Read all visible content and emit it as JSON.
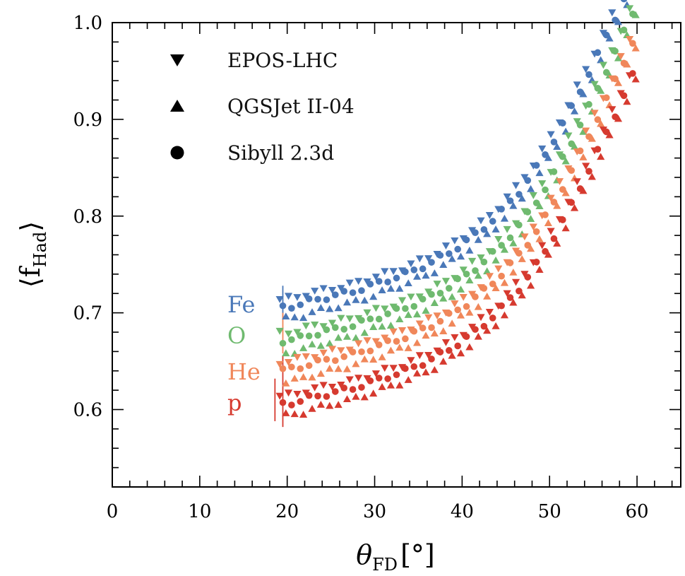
{
  "chart_data": {
    "type": "scatter",
    "xlabel": "θ",
    "xlabel_sub": "FD",
    "xlabel_unit_open": "[",
    "xlabel_unit": "°",
    "xlabel_unit_close": "]",
    "ylabel_open": "⟨",
    "ylabel": "f",
    "ylabel_sub": "Had",
    "ylabel_close": "⟩",
    "xlim": [
      0,
      65
    ],
    "ylim": [
      0.52,
      1.0
    ],
    "x_ticks": [
      0,
      10,
      20,
      30,
      40,
      50,
      60
    ],
    "y_ticks": [
      0.6,
      0.7,
      0.8,
      0.9,
      1.0
    ],
    "y_tick_labels": [
      "0.6",
      "0.7",
      "0.8",
      "0.9",
      "1.0"
    ],
    "legend": {
      "position": "top-left",
      "entries": [
        {
          "label": "EPOS-LHC",
          "marker": "triangle-down"
        },
        {
          "label": "QGSJet II-04",
          "marker": "triangle-up"
        },
        {
          "label": "Sibyll 2.3d",
          "marker": "circle"
        }
      ]
    },
    "primaries": [
      {
        "name": "Fe",
        "color": "#4a78b8",
        "offset": 0.1
      },
      {
        "name": "O",
        "color": "#6fba6f",
        "offset": 0.065
      },
      {
        "name": "He",
        "color": "#f0875a",
        "offset": 0.035
      },
      {
        "name": "p",
        "color": "#d63a2f",
        "offset": 0.0
      }
    ],
    "models": [
      {
        "name": "EPOS-LHC",
        "marker": "triangle-down",
        "dx": -0.35,
        "dy": 0.008
      },
      {
        "name": "QGSJet II-04",
        "marker": "triangle-up",
        "dx": 0.35,
        "dy": -0.012
      },
      {
        "name": "Sibyll 2.3d",
        "marker": "circle",
        "dx": 0.0,
        "dy": 0.0
      }
    ],
    "base_x": [
      19.5,
      20.5,
      21.5,
      22.5,
      23.5,
      24.5,
      25.5,
      26.5,
      27.5,
      28.5,
      29.5,
      30.5,
      31.5,
      32.5,
      33.5,
      34.5,
      35.5,
      36.5,
      37.5,
      38.5,
      39.5,
      40.5,
      41.5,
      42.5,
      43.5,
      44.5,
      45.5,
      46.5,
      47.5,
      48.5,
      49.5,
      50.5,
      51.5,
      52.5,
      53.5,
      54.5,
      55.5,
      56.5,
      57.5,
      58.5,
      59.5
    ],
    "base_y": [
      0.606,
      0.607,
      0.609,
      0.612,
      0.614,
      0.616,
      0.618,
      0.62,
      0.622,
      0.625,
      0.628,
      0.631,
      0.634,
      0.637,
      0.64,
      0.644,
      0.648,
      0.652,
      0.657,
      0.662,
      0.668,
      0.674,
      0.681,
      0.688,
      0.696,
      0.705,
      0.715,
      0.725,
      0.737,
      0.75,
      0.764,
      0.779,
      0.795,
      0.812,
      0.83,
      0.848,
      0.867,
      0.886,
      0.905,
      0.925,
      0.945
    ],
    "error_bars": [
      {
        "primary": "Fe",
        "x": 19.5,
        "low": 0.695,
        "high": 0.728
      },
      {
        "primary": "He",
        "x": 19.5,
        "low": 0.658,
        "high": 0.7
      },
      {
        "primary": "p",
        "x": 18.6,
        "low": 0.588,
        "high": 0.632
      },
      {
        "primary": "p",
        "x": 19.5,
        "low": 0.582,
        "high": 0.656
      }
    ]
  }
}
